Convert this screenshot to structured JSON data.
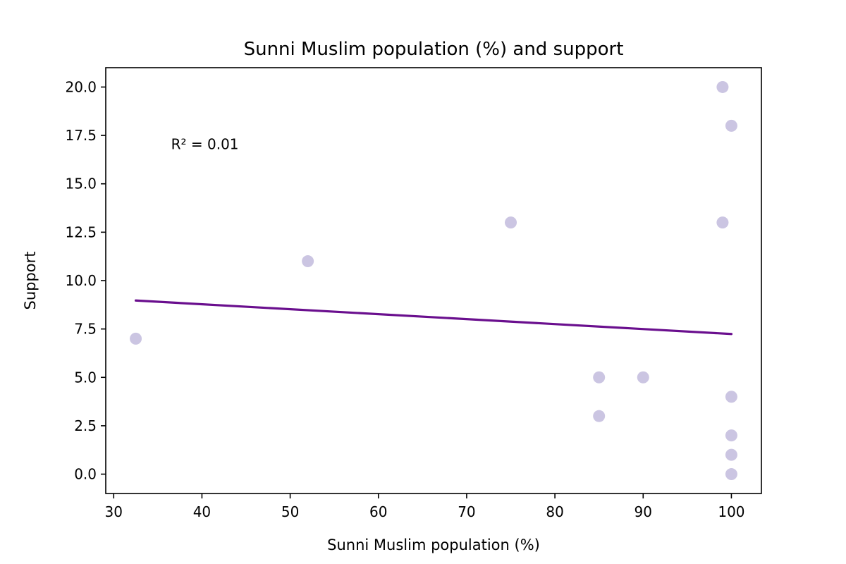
{
  "chart_data": {
    "type": "scatter",
    "title": "Sunni Muslim population (%) and support",
    "xlabel": "Sunni Muslim population (%)",
    "ylabel": "Support",
    "xlim": [
      29.1,
      103.4
    ],
    "ylim": [
      -1.0,
      21.0
    ],
    "xticks": [
      30,
      40,
      50,
      60,
      70,
      80,
      90,
      100
    ],
    "xtick_labels": [
      "30",
      "40",
      "50",
      "60",
      "70",
      "80",
      "90",
      "100"
    ],
    "yticks": [
      0,
      2.5,
      5,
      7.5,
      10,
      12.5,
      15,
      17.5,
      20
    ],
    "ytick_labels": [
      "0.0",
      "2.5",
      "5.0",
      "7.5",
      "10.0",
      "12.5",
      "15.0",
      "17.5",
      "20.0"
    ],
    "grid": false,
    "legend": "none",
    "points": [
      {
        "x": 32.5,
        "y": 7
      },
      {
        "x": 52,
        "y": 11
      },
      {
        "x": 75,
        "y": 13
      },
      {
        "x": 85,
        "y": 5
      },
      {
        "x": 85,
        "y": 3
      },
      {
        "x": 90,
        "y": 5
      },
      {
        "x": 99,
        "y": 20
      },
      {
        "x": 99,
        "y": 13
      },
      {
        "x": 100,
        "y": 18
      },
      {
        "x": 100,
        "y": 4
      },
      {
        "x": 100,
        "y": 2
      },
      {
        "x": 100,
        "y": 1
      },
      {
        "x": 100,
        "y": 0
      }
    ],
    "trendline": {
      "x": [
        32.5,
        100
      ],
      "y": [
        8.97,
        7.24
      ]
    },
    "annotation": {
      "text": "R² = 0.01",
      "x": 36.5,
      "y": 16.8
    },
    "colors": {
      "points": "#cbc5e2",
      "trendline": "#6a0f8e",
      "axes": "#000000"
    }
  }
}
